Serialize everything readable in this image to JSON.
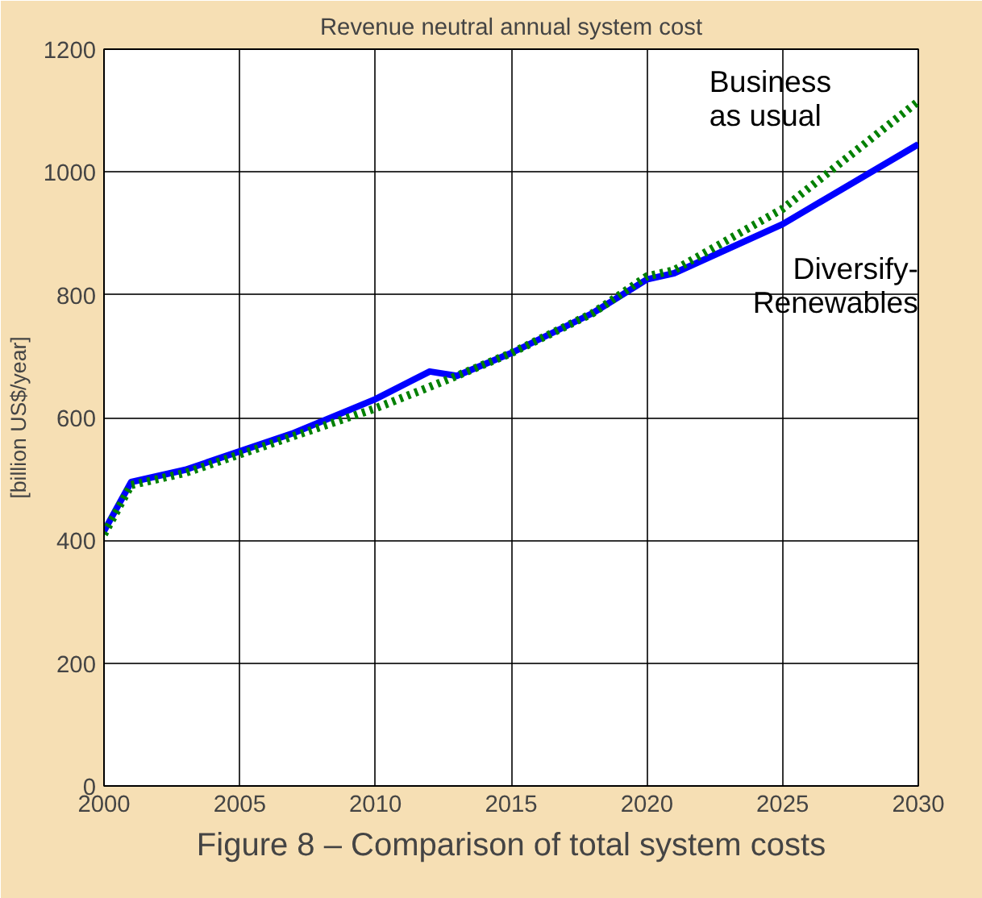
{
  "chart_data": {
    "type": "line",
    "title": "Revenue neutral annual system cost",
    "ylabel": "[billion US$/year]",
    "x": [
      2000,
      2001,
      2003,
      2005,
      2007,
      2010,
      2012,
      2013,
      2015,
      2018,
      2020,
      2021,
      2025,
      2030
    ],
    "series": [
      {
        "name": "Diversify-\nRenewables",
        "color": "#0000ff",
        "line_style": "solid",
        "values": [
          415,
          495,
          515,
          545,
          575,
          630,
          675,
          668,
          705,
          770,
          825,
          835,
          915,
          1045
        ]
      },
      {
        "name": "Business\nas usual",
        "color": "#008000",
        "line_style": "dotted",
        "values": [
          410,
          490,
          510,
          540,
          570,
          615,
          650,
          668,
          705,
          770,
          830,
          840,
          940,
          1115
        ]
      }
    ],
    "xlim": [
      2000,
      2030
    ],
    "xticks": [
      2000,
      2005,
      2010,
      2015,
      2020,
      2025,
      2030
    ],
    "ylim": [
      0,
      1200
    ],
    "yticks": [
      0,
      200,
      400,
      600,
      800,
      1000,
      1200
    ],
    "grid": true,
    "marker": "none",
    "annotations": [
      "Figure 8 – Comparison of total system costs"
    ]
  }
}
